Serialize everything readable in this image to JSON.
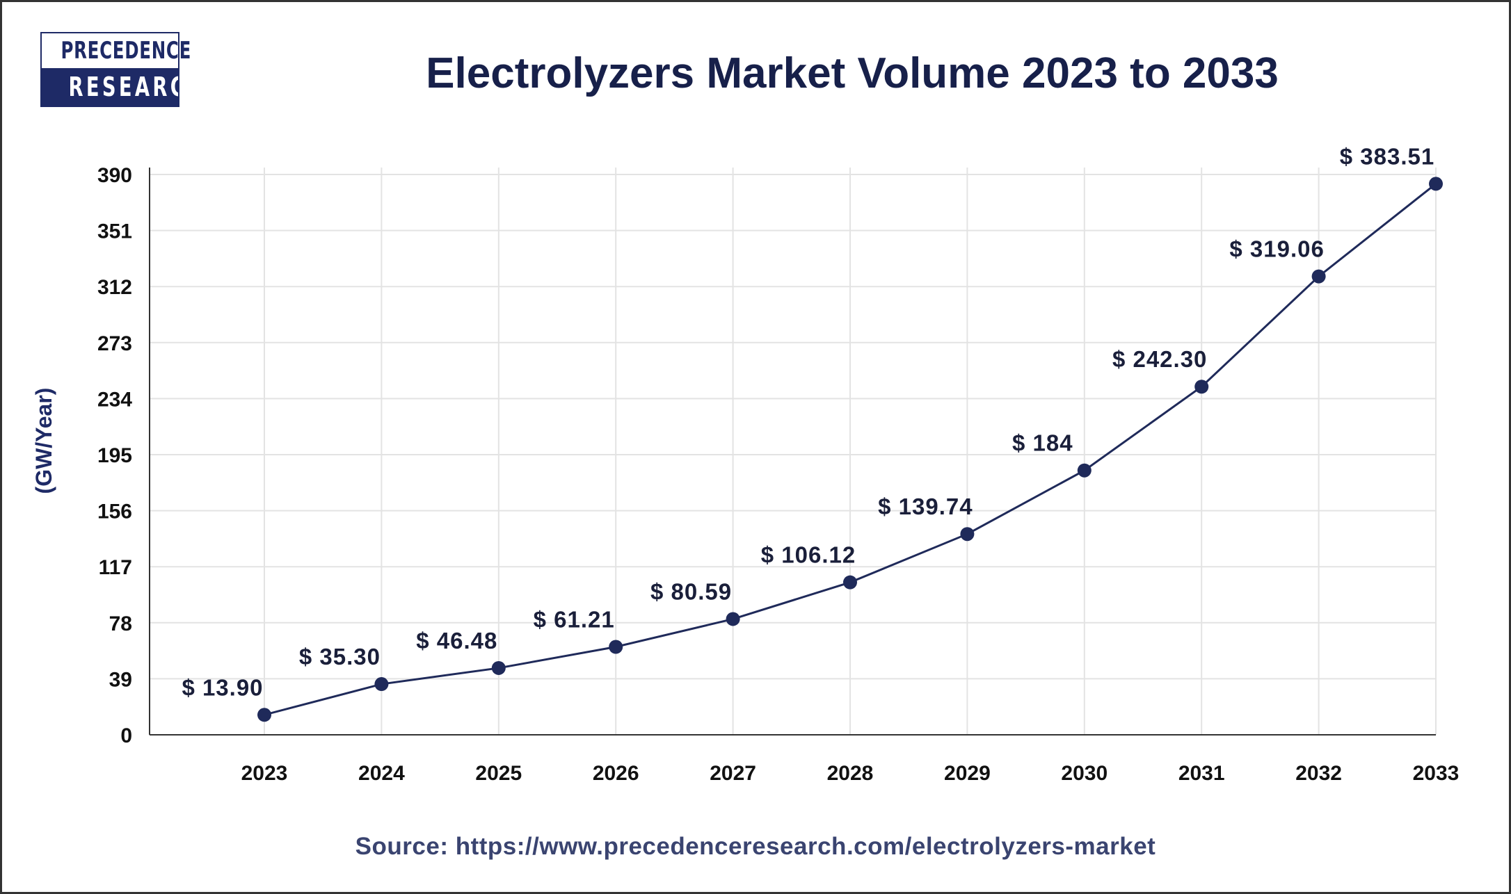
{
  "logo": {
    "line1": "PRECEDENCE",
    "line2": "RESEARCH"
  },
  "chart_data": {
    "type": "line",
    "title": "Electrolyzers Market Volume 2023 to 2033",
    "xlabel": "",
    "ylabel": "(GW/Year)",
    "categories": [
      "2023",
      "2024",
      "2025",
      "2026",
      "2027",
      "2028",
      "2029",
      "2030",
      "2031",
      "2032",
      "2033"
    ],
    "values": [
      13.9,
      35.3,
      46.48,
      61.21,
      80.59,
      106.12,
      139.74,
      184,
      242.3,
      319.06,
      383.51
    ],
    "data_labels": [
      "$ 13.90",
      "$ 35.30",
      "$ 46.48",
      "$ 61.21",
      "$ 80.59",
      "$ 106.12",
      "$ 139.74",
      "$ 184",
      "$ 242.30",
      "$ 319.06",
      "$ 383.51"
    ],
    "yticks": [
      0,
      39,
      78,
      117,
      156,
      195,
      234,
      273,
      312,
      351,
      390
    ],
    "ylim": [
      0,
      390
    ],
    "grid": true,
    "line_color": "#1f2a5a"
  },
  "source": "Source: https://www.precedenceresearch.com/electrolyzers-market"
}
